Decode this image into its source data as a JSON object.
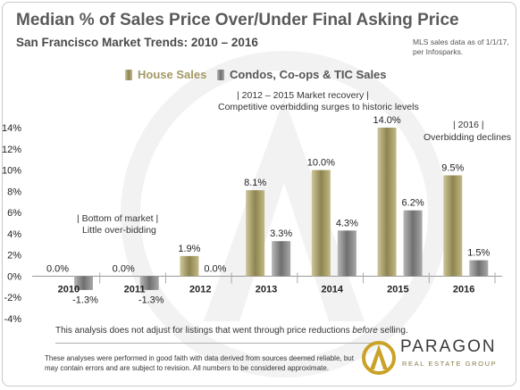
{
  "title": "Median % of Sales Price Over/Under Final Asking Price",
  "subtitle": "San Francisco Market Trends: 2010 – 2016",
  "source_note": "MLS sales data as of 1/1/17, per Infosparks.",
  "annotations": {
    "bottom_line1": "| Bottom of market |",
    "bottom_line2": "Little over-bidding",
    "recovery_line1": "|    2012 – 2015 Market recovery    |",
    "recovery_line2": "Competitive overbidding surges to historic levels",
    "decline_line1": "| 2016 |",
    "decline_line2": "Overbidding declines"
  },
  "disclaimer_pre": "This analysis does not adjust for listings that went through price reductions ",
  "disclaimer_em": "before",
  "disclaimer_post": " selling.",
  "footnote": "These analyses were performed in good faith with data derived from sources deemed reliable, but may contain errors and are subject to revision.  All numbers to be considered  approximate.",
  "logo": {
    "name": "PARAGON",
    "tagline": "REAL ESTATE GROUP"
  },
  "colors": {
    "house": "#a39a66",
    "condo": "#8c8c8c",
    "title": "#5a5a5a",
    "grid": "#d0d0d0"
  },
  "chart_data": {
    "type": "bar",
    "categories": [
      "2010",
      "2011",
      "2012",
      "2013",
      "2014",
      "2015",
      "2016"
    ],
    "series": [
      {
        "name": "House Sales",
        "values": [
          0.0,
          0.0,
          1.9,
          8.1,
          10.0,
          14.0,
          9.5
        ],
        "labels": [
          "0.0%",
          "0.0%",
          "1.9%",
          "8.1%",
          "10.0%",
          "14.0%",
          "9.5%"
        ]
      },
      {
        "name": "Condos, Co-ops & TIC Sales",
        "values": [
          -1.3,
          -1.3,
          0.0,
          3.3,
          4.3,
          6.2,
          1.5
        ],
        "labels": [
          "-1.3%",
          "-1.3%",
          "0.0%",
          "3.3%",
          "4.3%",
          "6.2%",
          "1.5%"
        ]
      }
    ],
    "ylim": [
      -4,
      14
    ],
    "yticks": [
      "-4%",
      "-2%",
      "0%",
      "2%",
      "4%",
      "6%",
      "8%",
      "10%",
      "12%",
      "14%"
    ],
    "ytick_values": [
      -4,
      -2,
      0,
      2,
      4,
      6,
      8,
      10,
      12,
      14
    ],
    "grid": false,
    "legend": "top-center"
  }
}
